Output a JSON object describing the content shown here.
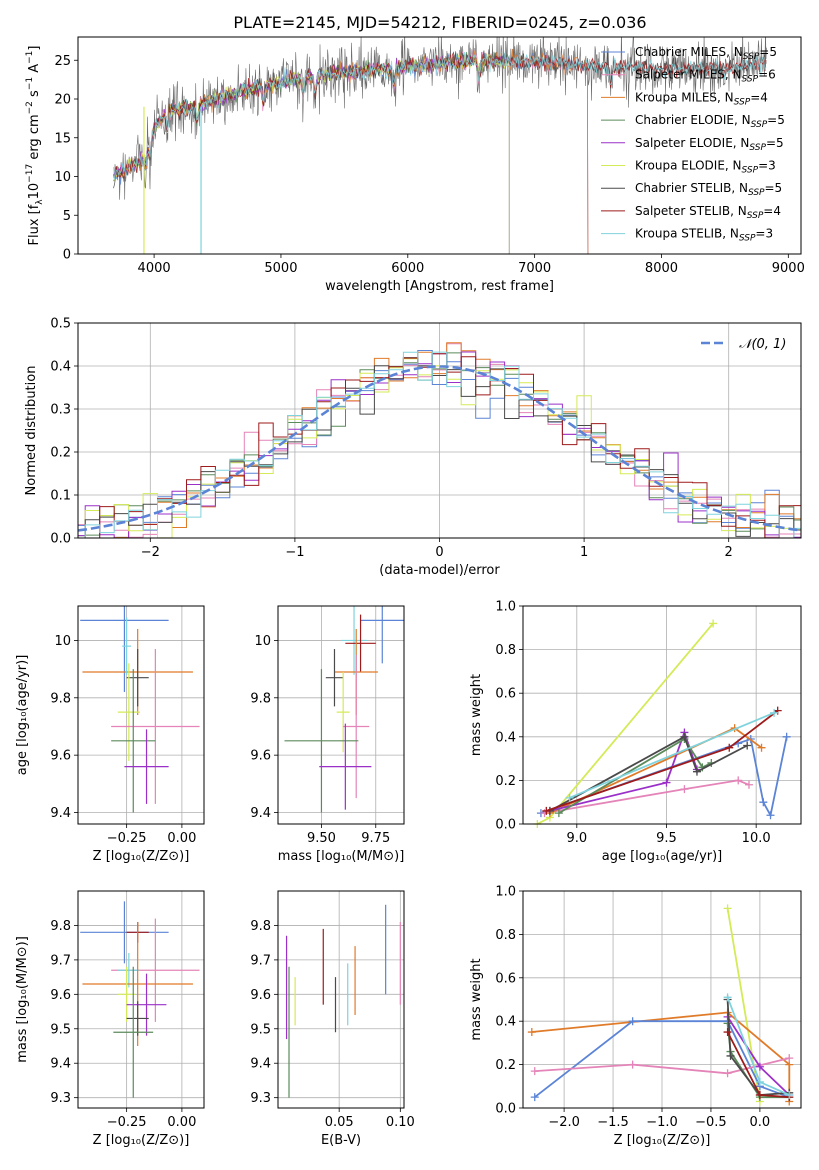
{
  "figure": {
    "title": "PLATE=2145, MJD=54212, FIBERID=0245, z=0.036"
  },
  "colors": {
    "blue": "#5b84d6",
    "orange": "#e07b2a",
    "green": "#5b8a5b",
    "purple": "#9b30c8",
    "yellow": "#d5ea57",
    "pink": "#e484b8",
    "gray": "#4a4a4a",
    "red": "#9e1b1b",
    "cyan": "#7fd3dd",
    "grid": "#b0b0b0"
  },
  "chart_data": [
    {
      "id": "spectrum",
      "type": "line",
      "xlabel": "wavelength [Angstrom, rest frame]",
      "ylabel_parts": [
        "Flux [f",
        "λ",
        "10",
        "−17",
        " erg cm",
        "−2",
        " s",
        "−1",
        " A",
        "−1",
        "]"
      ],
      "xlim": [
        3400,
        9100
      ],
      "ylim": [
        0,
        28
      ],
      "xticks": [
        4000,
        5000,
        6000,
        7000,
        8000,
        9000
      ],
      "yticks": [
        0,
        5,
        10,
        15,
        20,
        25
      ],
      "grid": false,
      "legend_position": "upper-right",
      "series": [
        {
          "name": "Chabrier MILES, N",
          "sub": "SSP",
          "suffix": "=5",
          "color": "#5b84d6"
        },
        {
          "name": "Salpeter MILES, N",
          "sub": "SSP",
          "suffix": "=6",
          "color": "#e484b8"
        },
        {
          "name": "Kroupa MILES, N",
          "sub": "SSP",
          "suffix": "=4",
          "color": "#e07b2a"
        },
        {
          "name": "Chabrier ELODIE, N",
          "sub": "SSP",
          "suffix": "=5",
          "color": "#5b8a5b"
        },
        {
          "name": "Salpeter ELODIE, N",
          "sub": "SSP",
          "suffix": "=5",
          "color": "#9b30c8"
        },
        {
          "name": "Kroupa ELODIE, N",
          "sub": "SSP",
          "suffix": "=3",
          "color": "#d5ea57"
        },
        {
          "name": "Chabrier STELIB, N",
          "sub": "SSP",
          "suffix": "=5",
          "color": "#4a4a4a"
        },
        {
          "name": "Salpeter STELIB, N",
          "sub": "SSP",
          "suffix": "=4",
          "color": "#9e1b1b"
        },
        {
          "name": "Kroupa STELIB, N",
          "sub": "SSP",
          "suffix": "=3",
          "color": "#7fd3dd"
        }
      ],
      "continuum": [
        [
          3680,
          10
        ],
        [
          3900,
          12
        ],
        [
          4000,
          16
        ],
        [
          4100,
          18.5
        ],
        [
          4300,
          19
        ],
        [
          4500,
          20
        ],
        [
          4800,
          21.5
        ],
        [
          5100,
          22.5
        ],
        [
          5400,
          23.3
        ],
        [
          5800,
          23.8
        ],
        [
          6200,
          24.5
        ],
        [
          6500,
          25
        ],
        [
          7000,
          24.8
        ],
        [
          7500,
          24.2
        ],
        [
          8000,
          24
        ],
        [
          8500,
          23.8
        ],
        [
          8830,
          24.8
        ]
      ],
      "model_ends": {
        "MILES": 7420,
        "ELODIE": 6800,
        "STELIB": 9000
      },
      "observed_range": [
        3680,
        8830
      ]
    },
    {
      "id": "residuals",
      "type": "histogram",
      "xlabel": "(data-model)/error",
      "ylabel": "Normed distribution",
      "xlim": [
        -2.5,
        2.5
      ],
      "ylim": [
        0,
        0.5
      ],
      "xticks": [
        -2,
        -1,
        0,
        1,
        2
      ],
      "xtick_labels": [
        "−2",
        "−1",
        "0",
        "1",
        "2"
      ],
      "yticks": [
        0.0,
        0.1,
        0.2,
        0.3,
        0.4,
        0.5
      ],
      "ytick_labels": [
        "0.0",
        "0.1",
        "0.2",
        "0.3",
        "0.4",
        "0.5"
      ],
      "grid": true,
      "legend": "𝒩(0, 1)",
      "legend_position": "upper-right",
      "reference": {
        "type": "gaussian",
        "mean": 0,
        "sigma": 1,
        "color": "#5b84d6"
      },
      "bin_width": 0.1
    },
    {
      "id": "age-vs-Z",
      "type": "errorbar",
      "xlabel": "Z [log₁₀(Z/Z⊙)]",
      "ylabel": "age  [log₁₀(age/yr)]",
      "xlim": [
        -0.47,
        0.1
      ],
      "ylim": [
        9.36,
        10.12
      ],
      "xticks": [
        -0.25,
        0.0
      ],
      "xtick_labels": [
        "−0.25",
        "0.00"
      ],
      "yticks": [
        9.4,
        9.6,
        9.8,
        10.0
      ],
      "grid": true,
      "points": [
        {
          "color": "#5b84d6",
          "x": -0.26,
          "xerr": 0.2,
          "y": 10.07,
          "yerr": 0.25
        },
        {
          "color": "#e07b2a",
          "x": -0.2,
          "xerr": 0.25,
          "y": 9.89,
          "yerr": 0.15
        },
        {
          "color": "#4a4a4a",
          "x": -0.2,
          "xerr": 0.05,
          "y": 9.87,
          "yerr": 0.1
        },
        {
          "color": "#d5ea57",
          "x": -0.24,
          "xerr": 0.05,
          "y": 9.75,
          "yerr": 0.17
        },
        {
          "color": "#e484b8",
          "x": -0.12,
          "xerr": 0.2,
          "y": 9.7,
          "yerr": 0.27
        },
        {
          "color": "#5b8a5b",
          "x": -0.22,
          "xerr": 0.1,
          "y": 9.65,
          "yerr": 0.25
        },
        {
          "color": "#9b30c8",
          "x": -0.16,
          "xerr": 0.1,
          "y": 9.56,
          "yerr": 0.13
        },
        {
          "color": "#7fd3dd",
          "x": -0.25,
          "xerr": 0.02,
          "y": 9.98,
          "yerr": 0.1
        }
      ]
    },
    {
      "id": "age-vs-mass",
      "type": "errorbar",
      "xlabel": "mass [log₁₀(M/M⊙)]",
      "xlim": [
        9.3,
        9.88
      ],
      "ylim": [
        9.36,
        10.12
      ],
      "xticks": [
        9.5,
        9.75
      ],
      "xtick_labels": [
        "9.50",
        "9.75"
      ],
      "yticks": [
        9.4,
        9.6,
        9.8,
        10.0
      ],
      "grid": true,
      "points": [
        {
          "color": "#5b84d6",
          "x": 9.78,
          "xerr": 0.1,
          "y": 10.07,
          "yerr": 0.15
        },
        {
          "color": "#7fd3dd",
          "x": 9.65,
          "xerr": 0.06,
          "y": 10.0,
          "yerr": 0.12
        },
        {
          "color": "#9e1b1b",
          "x": 9.68,
          "xerr": 0.07,
          "y": 9.99,
          "yerr": 0.1
        },
        {
          "color": "#e07b2a",
          "x": 9.66,
          "xerr": 0.1,
          "y": 9.89,
          "yerr": 0.15
        },
        {
          "color": "#4a4a4a",
          "x": 9.56,
          "xerr": 0.04,
          "y": 9.87,
          "yerr": 0.1
        },
        {
          "color": "#d5ea57",
          "x": 9.6,
          "xerr": 0.03,
          "y": 9.75,
          "yerr": 0.14
        },
        {
          "color": "#e484b8",
          "x": 9.66,
          "xerr": 0.06,
          "y": 9.7,
          "yerr": 0.25
        },
        {
          "color": "#5b8a5b",
          "x": 9.5,
          "xerr": 0.17,
          "y": 9.65,
          "yerr": 0.25
        },
        {
          "color": "#9b30c8",
          "x": 9.61,
          "xerr": 0.12,
          "y": 9.56,
          "yerr": 0.15
        }
      ]
    },
    {
      "id": "weight-vs-age",
      "type": "line",
      "xlabel": "age  [log₁₀(age/yr)]",
      "ylabel": "mass weight",
      "xlim": [
        8.7,
        10.25
      ],
      "ylim": [
        0.0,
        1.0
      ],
      "xticks": [
        9.0,
        9.5,
        10.0
      ],
      "xtick_labels": [
        "9.0",
        "9.5",
        "10.0"
      ],
      "yticks": [
        0.0,
        0.2,
        0.4,
        0.6,
        0.8,
        1.0
      ],
      "yticks_labels": [
        "0.0",
        "0.2",
        "0.4",
        "0.6",
        "0.8",
        "1.0"
      ],
      "grid": true,
      "series": [
        {
          "color": "#d5ea57",
          "points": [
            [
              8.78,
              0.0
            ],
            [
              8.85,
              0.03
            ],
            [
              9.76,
              0.92
            ]
          ]
        },
        {
          "color": "#5b84d6",
          "points": [
            [
              8.8,
              0.05
            ],
            [
              9.9,
              0.37
            ],
            [
              9.97,
              0.39
            ],
            [
              10.04,
              0.1
            ],
            [
              10.08,
              0.04
            ],
            [
              10.17,
              0.4
            ]
          ]
        },
        {
          "color": "#e484b8",
          "points": [
            [
              8.82,
              0.05
            ],
            [
              9.6,
              0.16
            ],
            [
              9.9,
              0.2
            ],
            [
              9.96,
              0.18
            ]
          ]
        },
        {
          "color": "#e07b2a",
          "points": [
            [
              8.85,
              0.05
            ],
            [
              9.88,
              0.44
            ],
            [
              10.03,
              0.35
            ]
          ]
        },
        {
          "color": "#9b30c8",
          "points": [
            [
              8.85,
              0.06
            ],
            [
              9.5,
              0.19
            ],
            [
              9.6,
              0.42
            ],
            [
              9.67,
              0.25
            ]
          ]
        },
        {
          "color": "#5b8a5b",
          "points": [
            [
              8.9,
              0.05
            ],
            [
              9.6,
              0.39
            ],
            [
              9.7,
              0.26
            ],
            [
              9.75,
              0.28
            ]
          ]
        },
        {
          "color": "#4a4a4a",
          "points": [
            [
              8.85,
              0.06
            ],
            [
              9.6,
              0.4
            ],
            [
              9.67,
              0.24
            ],
            [
              9.95,
              0.36
            ]
          ]
        },
        {
          "color": "#9e1b1b",
          "points": [
            [
              8.83,
              0.06
            ],
            [
              9.85,
              0.35
            ],
            [
              10.12,
              0.52
            ]
          ]
        },
        {
          "color": "#7fd3dd",
          "points": [
            [
              8.96,
              0.12
            ],
            [
              10.1,
              0.51
            ]
          ]
        }
      ]
    },
    {
      "id": "mass-vs-Z",
      "type": "errorbar",
      "xlabel": "Z [log₁₀(Z/Z⊙)]",
      "ylabel": "mass [log₁₀(M/M⊙)]",
      "xlim": [
        -0.47,
        0.1
      ],
      "ylim": [
        9.27,
        9.9
      ],
      "xticks": [
        -0.25,
        0.0
      ],
      "xtick_labels": [
        "−0.25",
        "0.00"
      ],
      "yticks": [
        9.3,
        9.4,
        9.5,
        9.6,
        9.7,
        9.8
      ],
      "grid": true,
      "points": [
        {
          "color": "#5b84d6",
          "x": -0.26,
          "xerr": 0.2,
          "y": 9.78,
          "yerr": 0.09
        },
        {
          "color": "#9e1b1b",
          "x": -0.2,
          "xerr": 0.05,
          "y": 9.78,
          "yerr": 0.03
        },
        {
          "color": "#e484b8",
          "x": -0.12,
          "xerr": 0.2,
          "y": 9.67,
          "yerr": 0.15
        },
        {
          "color": "#7fd3dd",
          "x": -0.24,
          "xerr": 0.05,
          "y": 9.67,
          "yerr": 0.05
        },
        {
          "color": "#e07b2a",
          "x": -0.2,
          "xerr": 0.25,
          "y": 9.63,
          "yerr": 0.18
        },
        {
          "color": "#d5ea57",
          "x": -0.25,
          "xerr": 0.04,
          "y": 9.6,
          "yerr": 0.08
        },
        {
          "color": "#9b30c8",
          "x": -0.16,
          "xerr": 0.09,
          "y": 9.57,
          "yerr": 0.09
        },
        {
          "color": "#4a4a4a",
          "x": -0.2,
          "xerr": 0.05,
          "y": 9.53,
          "yerr": 0.05
        },
        {
          "color": "#5b8a5b",
          "x": -0.22,
          "xerr": 0.09,
          "y": 9.49,
          "yerr": 0.19
        }
      ]
    },
    {
      "id": "mass-vs-EBV",
      "type": "errorbar",
      "xlabel": "E(B-V)",
      "xlim": [
        0.0,
        0.103
      ],
      "ylim": [
        9.27,
        9.9
      ],
      "xticks": [
        0.05,
        0.1
      ],
      "xtick_labels": [
        "0.05",
        "0.10"
      ],
      "yticks": [
        9.3,
        9.4,
        9.5,
        9.6,
        9.7,
        9.8
      ],
      "grid": true,
      "points": [
        {
          "color": "#9b30c8",
          "x": 0.007,
          "xerr": 0,
          "y": 9.62,
          "yerr": 0.15
        },
        {
          "color": "#5b8a5b",
          "x": 0.009,
          "xerr": 0,
          "y": 9.49,
          "yerr": 0.19
        },
        {
          "color": "#d5ea57",
          "x": 0.014,
          "xerr": 0,
          "y": 9.58,
          "yerr": 0.07
        },
        {
          "color": "#9e1b1b",
          "x": 0.037,
          "xerr": 0,
          "y": 9.68,
          "yerr": 0.11
        },
        {
          "color": "#4a4a4a",
          "x": 0.047,
          "xerr": 0,
          "y": 9.57,
          "yerr": 0.08
        },
        {
          "color": "#7fd3dd",
          "x": 0.057,
          "xerr": 0,
          "y": 9.6,
          "yerr": 0.09
        },
        {
          "color": "#e07b2a",
          "x": 0.063,
          "xerr": 0,
          "y": 9.64,
          "yerr": 0.1
        },
        {
          "color": "#5b84d6",
          "x": 0.088,
          "xerr": 0,
          "y": 9.73,
          "yerr": 0.13
        },
        {
          "color": "#e484b8",
          "x": 0.1,
          "xerr": 0,
          "y": 9.69,
          "yerr": 0.12
        }
      ]
    },
    {
      "id": "weight-vs-Z",
      "type": "line",
      "xlabel": "Z [log₁₀(Z/Z⊙)]",
      "ylabel": "mass weight",
      "xlim": [
        -2.42,
        0.42
      ],
      "ylim": [
        0.0,
        1.0
      ],
      "xticks": [
        -2.0,
        -1.5,
        -1.0,
        -0.5,
        0.0
      ],
      "xtick_labels": [
        "−2.0",
        "−1.5",
        "−1.0",
        "−0.5",
        "0.0"
      ],
      "yticks": [
        0.0,
        0.2,
        0.4,
        0.6,
        0.8,
        1.0
      ],
      "yticks_labels": [
        "0.0",
        "0.2",
        "0.4",
        "0.6",
        "0.8",
        "1.0"
      ],
      "grid": true,
      "series": [
        {
          "color": "#d5ea57",
          "points": [
            [
              -0.33,
              0.92
            ],
            [
              0.0,
              0.03
            ]
          ]
        },
        {
          "color": "#e07b2a",
          "points": [
            [
              -2.33,
              0.35
            ],
            [
              -0.33,
              0.44
            ],
            [
              0.3,
              0.2
            ],
            [
              0.3,
              0.03
            ]
          ]
        },
        {
          "color": "#5b84d6",
          "points": [
            [
              -2.3,
              0.05
            ],
            [
              -1.3,
              0.4
            ],
            [
              -0.33,
              0.4
            ],
            [
              0.0,
              0.1
            ],
            [
              0.3,
              0.05
            ]
          ]
        },
        {
          "color": "#e484b8",
          "points": [
            [
              -2.3,
              0.17
            ],
            [
              -1.3,
              0.2
            ],
            [
              -0.33,
              0.16
            ],
            [
              0.3,
              0.23
            ]
          ]
        },
        {
          "color": "#9b30c8",
          "points": [
            [
              -0.33,
              0.42
            ],
            [
              0.0,
              0.19
            ],
            [
              0.3,
              0.06
            ]
          ]
        },
        {
          "color": "#5b8a5b",
          "points": [
            [
              -0.33,
              0.39
            ],
            [
              -0.3,
              0.26
            ],
            [
              0.0,
              0.05
            ],
            [
              0.3,
              0.05
            ]
          ]
        },
        {
          "color": "#4a4a4a",
          "points": [
            [
              -0.33,
              0.5
            ],
            [
              -0.3,
              0.24
            ],
            [
              0.0,
              0.06
            ],
            [
              0.3,
              0.07
            ]
          ]
        },
        {
          "color": "#9e1b1b",
          "points": [
            [
              -0.33,
              0.35
            ],
            [
              0.0,
              0.06
            ],
            [
              0.3,
              0.05
            ]
          ]
        },
        {
          "color": "#7fd3dd",
          "points": [
            [
              -0.33,
              0.51
            ],
            [
              0.0,
              0.12
            ],
            [
              0.3,
              0.06
            ]
          ]
        }
      ]
    }
  ]
}
